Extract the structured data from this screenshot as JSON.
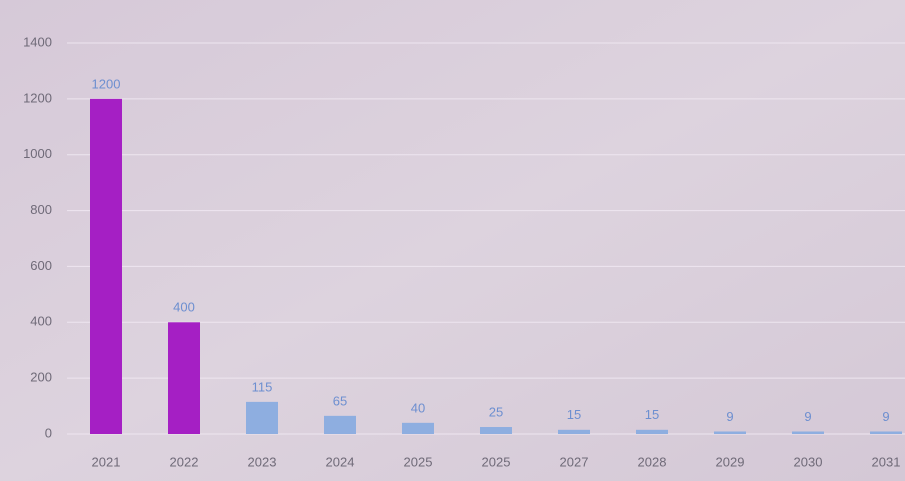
{
  "chart_data": {
    "type": "bar",
    "categories": [
      "2021",
      "2022",
      "2023",
      "2024",
      "2025",
      "2025",
      "2027",
      "2028",
      "2029",
      "2030",
      "2031"
    ],
    "values": [
      1200,
      400,
      115,
      65,
      40,
      25,
      15,
      15,
      9,
      9,
      9
    ],
    "colors": [
      "#a51fc4",
      "#a51fc4",
      "#8eaee0",
      "#8eaee0",
      "#8eaee0",
      "#8eaee0",
      "#8eaee0",
      "#8eaee0",
      "#8eaee0",
      "#8eaee0",
      "#8eaee0"
    ],
    "ylim": [
      0,
      1400
    ],
    "yticks": [
      0,
      200,
      400,
      600,
      800,
      1000,
      1200,
      1400
    ],
    "grid": true
  }
}
